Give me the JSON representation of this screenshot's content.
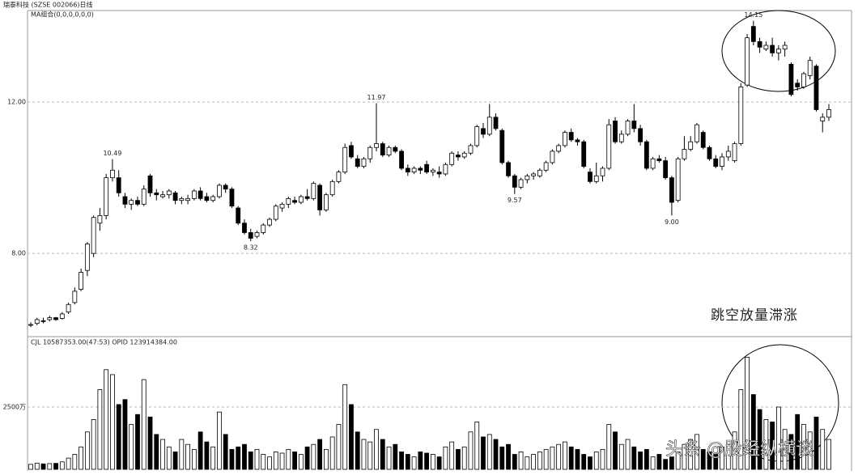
{
  "header": {
    "title": "瑞泰科技 (SZSE 002066)日线",
    "indicator": "MA组合(0,0,0,0,0,0)",
    "volume_info": "CJL  10587353.00(47:53)    OPID  123914384.00"
  },
  "watermark": "头条 @股经纵横谈",
  "chart_data": {
    "type": "candlestick",
    "annotation": "跳空放量滞涨",
    "up_color": "#ffffff",
    "down_color": "#000000",
    "ylim": [
      5.8,
      14.42
    ],
    "yticks": [
      {
        "value": 8,
        "label": "8.00"
      },
      {
        "value": 12,
        "label": "12.00"
      }
    ],
    "grid": true,
    "volume_ylim": [
      0,
      5000
    ],
    "volume_yticks": [
      {
        "value": 2500,
        "label": "2500万"
      }
    ],
    "open": [
      6.1,
      6.15,
      6.22,
      6.25,
      6.3,
      6.28,
      6.45,
      6.7,
      7.05,
      7.55,
      8.0,
      8.8,
      9.0,
      10.0,
      10.0,
      9.5,
      9.3,
      9.4,
      9.3,
      10.05,
      9.6,
      9.5,
      9.55,
      9.6,
      9.4,
      9.4,
      9.45,
      9.65,
      9.5,
      9.4,
      9.5,
      9.8,
      9.7,
      9.2,
      8.8,
      8.55,
      8.45,
      8.55,
      8.75,
      8.9,
      9.2,
      9.3,
      9.4,
      9.35,
      9.5,
      9.45,
      9.8,
      9.15,
      9.55,
      9.9,
      10.15,
      10.85,
      10.5,
      10.3,
      10.5,
      10.8,
      10.9,
      10.6,
      10.8,
      10.7,
      10.25,
      10.15,
      10.25,
      10.35,
      10.15,
      10.15,
      10.1,
      10.35,
      10.6,
      10.55,
      10.65,
      10.85,
      11.3,
      11.15,
      11.6,
      11.25,
      10.4,
      10.05,
      9.75,
      9.95,
      10.05,
      10.05,
      10.2,
      10.4,
      10.7,
      10.85,
      11.2,
      11.0,
      10.95,
      10.15,
      9.9,
      10.05,
      10.25,
      11.5,
      10.95,
      11.15,
      11.5,
      11.3,
      10.95,
      10.25,
      10.5,
      10.45,
      10.0,
      9.4,
      10.5,
      10.75,
      10.95,
      11.2,
      10.8,
      10.5,
      10.3,
      10.55,
      10.45,
      10.9,
      12.45,
      14.0,
      13.6,
      13.4,
      13.5,
      13.3,
      13.4,
      13.0,
      12.5,
      12.4,
      12.7,
      12.95,
      11.5,
      11.6
    ],
    "high": [
      6.18,
      6.3,
      6.3,
      6.35,
      6.32,
      6.45,
      6.7,
      7.1,
      7.6,
      8.3,
      9.0,
      9.2,
      10.1,
      10.49,
      10.2,
      9.6,
      9.45,
      9.5,
      9.8,
      10.1,
      9.7,
      9.65,
      9.7,
      9.65,
      9.5,
      9.55,
      9.7,
      9.75,
      9.6,
      9.55,
      9.85,
      9.85,
      9.75,
      9.25,
      8.9,
      8.65,
      8.6,
      8.8,
      8.95,
      9.3,
      9.35,
      9.5,
      9.5,
      9.55,
      9.7,
      9.9,
      9.85,
      9.6,
      9.95,
      10.2,
      10.9,
      10.95,
      10.6,
      10.55,
      10.85,
      11.97,
      10.95,
      10.85,
      10.85,
      10.75,
      10.35,
      10.3,
      10.3,
      10.45,
      10.25,
      10.3,
      10.4,
      10.7,
      10.7,
      10.7,
      10.9,
      11.4,
      11.45,
      11.95,
      11.7,
      11.3,
      10.45,
      10.1,
      10.0,
      10.1,
      10.15,
      10.25,
      10.45,
      10.75,
      10.9,
      11.25,
      11.3,
      11.05,
      11.0,
      10.25,
      10.4,
      10.3,
      11.55,
      11.6,
      11.25,
      11.55,
      11.95,
      11.4,
      11.0,
      10.55,
      10.6,
      10.55,
      10.05,
      10.55,
      11.1,
      11.1,
      11.45,
      11.25,
      10.85,
      10.6,
      10.65,
      10.85,
      10.95,
      12.5,
      13.8,
      14.15,
      13.7,
      13.6,
      13.7,
      13.5,
      13.6,
      13.05,
      12.6,
      12.8,
      13.2,
      13.0,
      11.7,
      11.95
    ],
    "low": [
      6.05,
      6.1,
      6.15,
      6.2,
      6.22,
      6.25,
      6.4,
      6.65,
      7.0,
      7.4,
      7.9,
      8.6,
      8.9,
      9.9,
      9.5,
      9.2,
      9.15,
      9.25,
      9.25,
      9.5,
      9.4,
      9.45,
      9.45,
      9.3,
      9.3,
      9.3,
      9.4,
      9.4,
      9.35,
      9.35,
      9.45,
      9.6,
      9.2,
      8.75,
      8.5,
      8.32,
      8.4,
      8.5,
      8.7,
      8.85,
      9.1,
      9.2,
      9.3,
      9.3,
      9.4,
      9.4,
      9.0,
      9.1,
      9.5,
      9.85,
      10.1,
      10.5,
      10.25,
      10.25,
      10.4,
      10.7,
      10.55,
      10.55,
      10.65,
      10.2,
      10.05,
      10.1,
      10.1,
      10.1,
      10.05,
      10.0,
      10.05,
      10.3,
      10.45,
      10.5,
      10.6,
      10.8,
      11.05,
      11.1,
      11.25,
      10.35,
      10.0,
      9.57,
      9.7,
      9.85,
      9.95,
      10.0,
      10.15,
      10.35,
      10.65,
      10.8,
      10.95,
      10.85,
      10.25,
      9.85,
      9.85,
      9.9,
      10.2,
      10.9,
      10.9,
      11.1,
      11.2,
      10.85,
      10.2,
      10.2,
      10.4,
      9.95,
      9.0,
      9.35,
      10.45,
      10.7,
      10.9,
      10.75,
      10.45,
      10.25,
      10.2,
      10.45,
      10.4,
      10.85,
      12.4,
      13.5,
      13.3,
      13.35,
      13.2,
      13.1,
      13.2,
      12.15,
      12.3,
      12.35,
      12.6,
      11.75,
      11.2,
      11.5
    ],
    "close": [
      6.12,
      6.25,
      6.2,
      6.3,
      6.25,
      6.4,
      6.65,
      7.0,
      7.5,
      8.25,
      8.95,
      9.0,
      10.0,
      10.2,
      9.6,
      9.3,
      9.4,
      9.3,
      9.7,
      9.6,
      9.55,
      9.55,
      9.65,
      9.4,
      9.45,
      9.45,
      9.65,
      9.45,
      9.4,
      9.5,
      9.8,
      9.7,
      9.25,
      8.8,
      8.55,
      8.4,
      8.55,
      8.75,
      8.9,
      9.25,
      9.3,
      9.45,
      9.35,
      9.5,
      9.45,
      9.85,
      9.15,
      9.55,
      9.9,
      10.15,
      10.8,
      10.55,
      10.3,
      10.5,
      10.8,
      10.9,
      10.6,
      10.8,
      10.7,
      10.25,
      10.15,
      10.25,
      10.2,
      10.15,
      10.2,
      10.1,
      10.35,
      10.65,
      10.55,
      10.65,
      10.85,
      11.35,
      11.15,
      11.6,
      11.3,
      10.4,
      10.05,
      9.75,
      9.95,
      10.05,
      10.1,
      10.2,
      10.4,
      10.7,
      10.85,
      11.2,
      11.0,
      10.95,
      10.3,
      9.9,
      10.05,
      10.25,
      11.4,
      10.95,
      11.15,
      11.5,
      11.3,
      10.95,
      10.25,
      10.5,
      10.45,
      10.0,
      9.35,
      10.5,
      10.75,
      10.95,
      11.4,
      10.8,
      10.5,
      10.3,
      10.55,
      10.7,
      10.9,
      12.4,
      13.7,
      13.6,
      13.45,
      13.5,
      13.3,
      13.4,
      13.5,
      12.2,
      12.4,
      12.75,
      13.1,
      11.8,
      11.6,
      11.8
    ],
    "volume": [
      200,
      250,
      220,
      230,
      240,
      300,
      450,
      600,
      900,
      1500,
      2000,
      3200,
      4000,
      3800,
      2600,
      2800,
      1800,
      2200,
      3600,
      2100,
      1400,
      1200,
      900,
      700,
      1200,
      1000,
      800,
      1500,
      1100,
      900,
      2300,
      1400,
      800,
      900,
      1000,
      700,
      800,
      600,
      500,
      700,
      650,
      800,
      700,
      600,
      900,
      1000,
      1200,
      800,
      1300,
      1800,
      3400,
      2600,
      1500,
      1200,
      1100,
      1600,
      1200,
      900,
      1000,
      700,
      600,
      500,
      700,
      650,
      600,
      500,
      900,
      1100,
      800,
      900,
      1500,
      1900,
      1300,
      1400,
      1200,
      900,
      1000,
      600,
      700,
      500,
      600,
      700,
      800,
      900,
      1000,
      1100,
      900,
      800,
      600,
      500,
      700,
      800,
      1800,
      1500,
      1000,
      1200,
      900,
      700,
      800,
      500,
      600,
      400,
      500,
      700,
      1000,
      1200,
      1400,
      800,
      700,
      600,
      900,
      1000,
      1500,
      3200,
      4500,
      3000,
      2400,
      2000,
      1900,
      2500,
      1600,
      1400,
      2200,
      1800,
      1500,
      2100,
      1600,
      1200
    ],
    "high_labels": [
      null,
      null,
      null,
      null,
      null,
      null,
      null,
      null,
      null,
      null,
      null,
      null,
      null,
      "10.49",
      null,
      null,
      null,
      null,
      null,
      null,
      null,
      null,
      null,
      null,
      null,
      null,
      null,
      null,
      null,
      null,
      null,
      null,
      null,
      null,
      null,
      null,
      null,
      null,
      null,
      null,
      null,
      null,
      null,
      null,
      null,
      null,
      null,
      null,
      null,
      null,
      null,
      null,
      null,
      null,
      null,
      "11.97",
      null,
      null,
      null,
      null,
      null,
      null,
      null,
      null,
      null,
      null,
      null,
      null,
      null,
      null,
      null,
      null,
      null,
      null,
      null,
      null,
      null,
      null,
      null,
      null,
      null,
      null,
      null,
      null,
      null,
      null,
      null,
      null,
      null,
      null,
      null,
      null,
      null,
      null,
      null,
      null,
      null,
      null,
      null,
      null,
      null,
      null,
      null,
      null,
      null,
      null,
      null,
      null,
      null,
      null,
      null,
      null,
      null,
      null,
      null,
      "14.15",
      null,
      null,
      null,
      null,
      null,
      null,
      null,
      null,
      null,
      null,
      null,
      null
    ],
    "low_labels": [
      null,
      null,
      null,
      null,
      null,
      null,
      null,
      null,
      null,
      null,
      null,
      null,
      null,
      null,
      null,
      null,
      null,
      null,
      null,
      null,
      null,
      null,
      null,
      null,
      null,
      null,
      null,
      null,
      null,
      null,
      null,
      null,
      null,
      null,
      null,
      "8.32",
      null,
      null,
      null,
      null,
      null,
      null,
      null,
      null,
      null,
      null,
      null,
      null,
      null,
      null,
      null,
      null,
      null,
      null,
      null,
      null,
      null,
      null,
      null,
      null,
      null,
      null,
      null,
      null,
      null,
      null,
      null,
      null,
      null,
      null,
      null,
      null,
      null,
      null,
      null,
      null,
      null,
      "9.57",
      null,
      null,
      null,
      null,
      null,
      null,
      null,
      null,
      null,
      null,
      null,
      null,
      null,
      null,
      null,
      null,
      null,
      null,
      null,
      null,
      null,
      null,
      null,
      null,
      "9.00",
      null,
      null,
      null,
      null,
      null,
      null,
      null,
      null,
      null,
      null,
      null,
      null,
      null,
      null,
      null,
      null,
      null,
      null,
      null,
      null,
      null,
      null,
      null,
      null,
      null
    ]
  }
}
